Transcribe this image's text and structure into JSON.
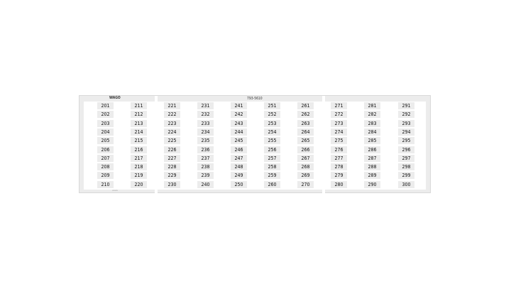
{
  "card": {
    "brand": "WAGO",
    "part_number": "793-5610",
    "serial": "xxxxx",
    "columns": [
      [
        "201",
        "202",
        "203",
        "204",
        "205",
        "206",
        "207",
        "208",
        "209",
        "210"
      ],
      [
        "211",
        "212",
        "213",
        "214",
        "215",
        "216",
        "217",
        "218",
        "219",
        "220"
      ],
      [
        "221",
        "222",
        "223",
        "224",
        "225",
        "226",
        "227",
        "228",
        "229",
        "230"
      ],
      [
        "231",
        "232",
        "233",
        "234",
        "235",
        "236",
        "237",
        "238",
        "239",
        "240"
      ],
      [
        "241",
        "242",
        "243",
        "244",
        "245",
        "246",
        "247",
        "248",
        "249",
        "250"
      ],
      [
        "251",
        "252",
        "253",
        "254",
        "255",
        "256",
        "257",
        "258",
        "259",
        "260"
      ],
      [
        "261",
        "262",
        "263",
        "264",
        "265",
        "266",
        "267",
        "268",
        "269",
        "270"
      ],
      [
        "271",
        "272",
        "273",
        "274",
        "275",
        "276",
        "277",
        "278",
        "279",
        "280"
      ],
      [
        "281",
        "282",
        "283",
        "284",
        "285",
        "286",
        "287",
        "288",
        "289",
        "290"
      ],
      [
        "291",
        "292",
        "293",
        "294",
        "295",
        "296",
        "297",
        "298",
        "299",
        "300"
      ]
    ]
  }
}
